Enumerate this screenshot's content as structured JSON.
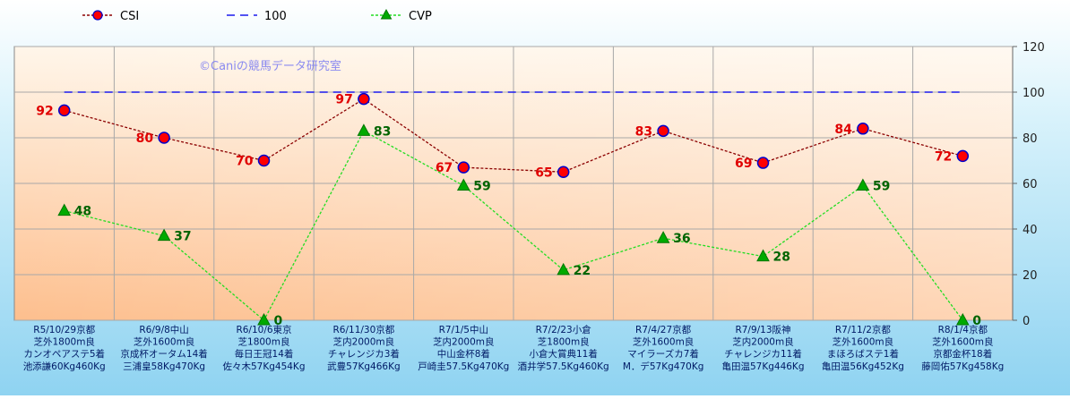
{
  "chart_data": {
    "type": "line",
    "watermark": "©Caniの競馬データ研究室",
    "ylim": [
      0,
      120
    ],
    "yticks": [
      0,
      20,
      40,
      60,
      80,
      100,
      120
    ],
    "grid": true,
    "legend_position": "top-left",
    "categories": [
      [
        "R5/10/29京都",
        "芝外1800m良",
        "カンオペアステ5着",
        "池添謙60Kg460Kg"
      ],
      [
        "R6/9/8中山",
        "芝外1600m良",
        "京成杯オータム14着",
        "三浦皇58Kg470Kg"
      ],
      [
        "R6/10/6東京",
        "芝1800m良",
        "毎日王冠14着",
        "佐々木57Kg454Kg"
      ],
      [
        "R6/11/30京都",
        "芝内2000m良",
        "チャレンジカ3着",
        "武豊57Kg466Kg"
      ],
      [
        "R7/1/5中山",
        "芝内2000m良",
        "中山金杯8着",
        "戸崎圭57.5Kg470Kg"
      ],
      [
        "R7/2/23小倉",
        "芝1800m良",
        "小倉大賞典11着",
        "酒井学57.5Kg460Kg"
      ],
      [
        "R7/4/27京都",
        "芝外1600m良",
        "マイラーズカ7着",
        "M．デ57Kg470Kg"
      ],
      [
        "R7/9/13阪神",
        "芝内2000m良",
        "チャレンジカ11着",
        "亀田温57Kg446Kg"
      ],
      [
        "R7/11/2京都",
        "芝外1600m良",
        "まほろばステ1着",
        "亀田温56Kg452Kg"
      ],
      [
        "R8/1/4京都",
        "芝外1600m良",
        "京都金杯18着",
        "藤岡佑57Kg458Kg"
      ]
    ],
    "series": [
      {
        "name": "CSI",
        "values": [
          92,
          80,
          70,
          97,
          67,
          65,
          83,
          69,
          84,
          72
        ],
        "color": "#8b0000",
        "marker": "circle",
        "marker_fill": "#ff0000",
        "marker_edge": "#0000cc",
        "line_style": "dotted"
      },
      {
        "name": "100",
        "values": [
          100,
          100,
          100,
          100,
          100,
          100,
          100,
          100,
          100,
          100
        ],
        "color": "#1a1aee",
        "line_style": "dashed"
      },
      {
        "name": "CVP",
        "values": [
          48,
          37,
          0,
          83,
          59,
          22,
          36,
          28,
          59,
          0
        ],
        "color": "#22dd22",
        "marker": "triangle",
        "marker_fill": "#00aa00",
        "line_style": "dotted"
      }
    ]
  }
}
